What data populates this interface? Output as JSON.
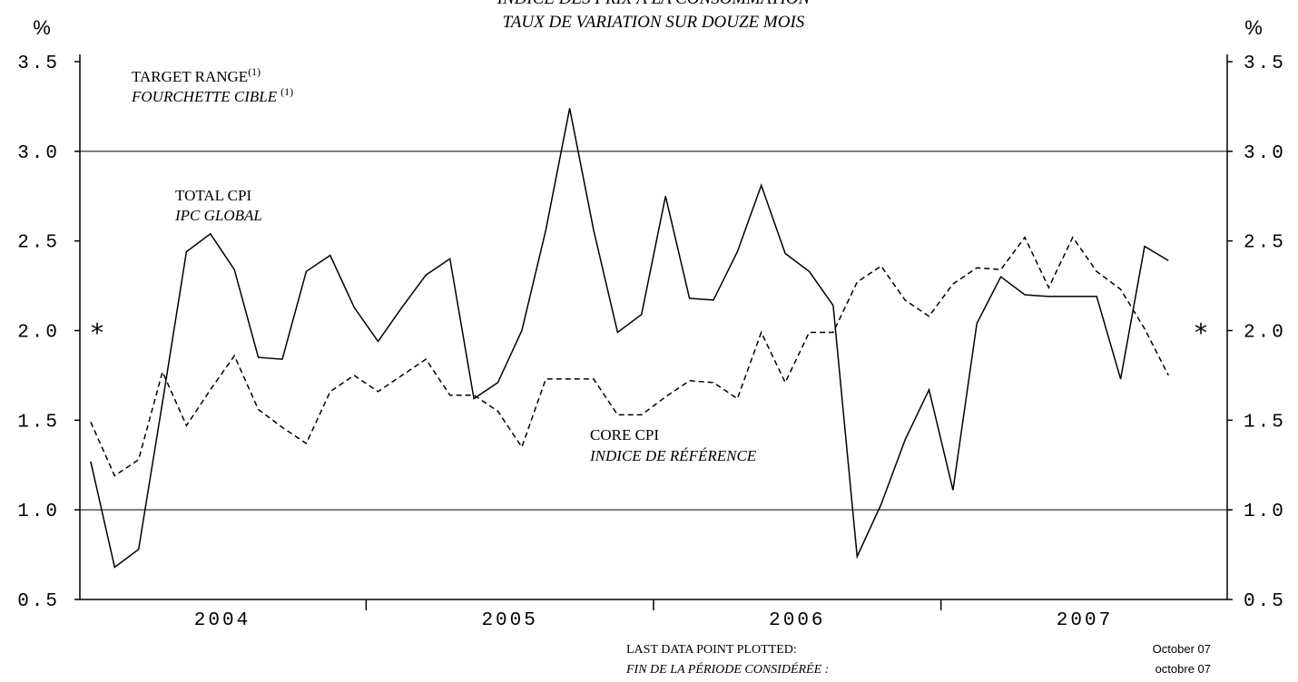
{
  "chart_data": {
    "type": "line",
    "title": "INDICE DES PRIX À LA CONSOMMATION",
    "subtitle": "TAUX DE VARIATION SUR DOUZE MOIS",
    "y_unit": "%",
    "categories": [
      null,
      null,
      null,
      null,
      null,
      null,
      null,
      null,
      null,
      null,
      null,
      null,
      null,
      null,
      null,
      null,
      null,
      null,
      null,
      null,
      null,
      null,
      null,
      null,
      null,
      null,
      null,
      null,
      null,
      null,
      null,
      null,
      null,
      null,
      null,
      null,
      null,
      null,
      null,
      null,
      null,
      null,
      null,
      null,
      null,
      null
    ],
    "series": [
      {
        "name": "TOTAL CPI",
        "name_fr": "IPC GLOBAL",
        "color": "#000000",
        "dash": false,
        "values": [
          1.27,
          0.68,
          0.78,
          1.6,
          2.44,
          2.54,
          2.34,
          1.85,
          1.84,
          2.33,
          2.42,
          2.13,
          1.94,
          2.13,
          2.31,
          2.4,
          1.62,
          1.71,
          2.0,
          2.56,
          3.24,
          2.56,
          1.99,
          2.09,
          2.75,
          2.18,
          2.17,
          2.44,
          2.81,
          2.43,
          2.33,
          2.14,
          0.74,
          1.03,
          1.39,
          1.67,
          1.11,
          2.04,
          2.3,
          2.2,
          2.19,
          2.19,
          2.19,
          1.73,
          2.47,
          2.39
        ]
      },
      {
        "name": "CORE CPI",
        "name_fr": "INDICE DE RÉFÉRENCE",
        "color": "#000000",
        "dash": true,
        "values": [
          1.49,
          1.19,
          1.28,
          1.77,
          1.47,
          1.67,
          1.86,
          1.56,
          1.46,
          1.37,
          1.66,
          1.75,
          1.66,
          1.75,
          1.84,
          1.64,
          1.64,
          1.55,
          1.35,
          1.73,
          1.73,
          1.73,
          1.53,
          1.53,
          1.63,
          1.72,
          1.71,
          1.62,
          1.99,
          1.71,
          1.99,
          1.99,
          2.27,
          2.36,
          2.17,
          2.08,
          2.26,
          2.35,
          2.34,
          2.52,
          2.24,
          2.52,
          2.33,
          2.23,
          2.01,
          1.75
        ]
      }
    ],
    "xlim": [
      -0.45,
      47.45
    ],
    "xticks": [
      {
        "value": 5.5,
        "label": "2004"
      },
      {
        "value": 17.5,
        "label": "2005"
      },
      {
        "value": 29.5,
        "label": "2006"
      },
      {
        "value": 41.5,
        "label": "2007"
      }
    ],
    "xminor": [
      11.5,
      23.5,
      35.5
    ],
    "ylim": [
      0.5,
      3.5
    ],
    "yticks": [
      0.5,
      {
        "value": 1,
        "label": "1.0"
      },
      1.5,
      {
        "value": 2,
        "label": "2.0"
      },
      2.5,
      {
        "value": 3,
        "label": "3.0"
      },
      3.5
    ],
    "target_range": {
      "label": "TARGET RANGE",
      "label_fr": "FOURCHETTE CIBLE",
      "note": "(1)",
      "values": [
        1,
        3
      ]
    },
    "midpoint": {
      "label": "*",
      "value": 2
    },
    "footer": {
      "label": "LAST DATA POINT PLOTTED:",
      "label_fr": "FIN DE LA PÉRIODE CONSIDÉRÉE :",
      "date": "October 07",
      "date_fr": "octobre 07"
    }
  }
}
